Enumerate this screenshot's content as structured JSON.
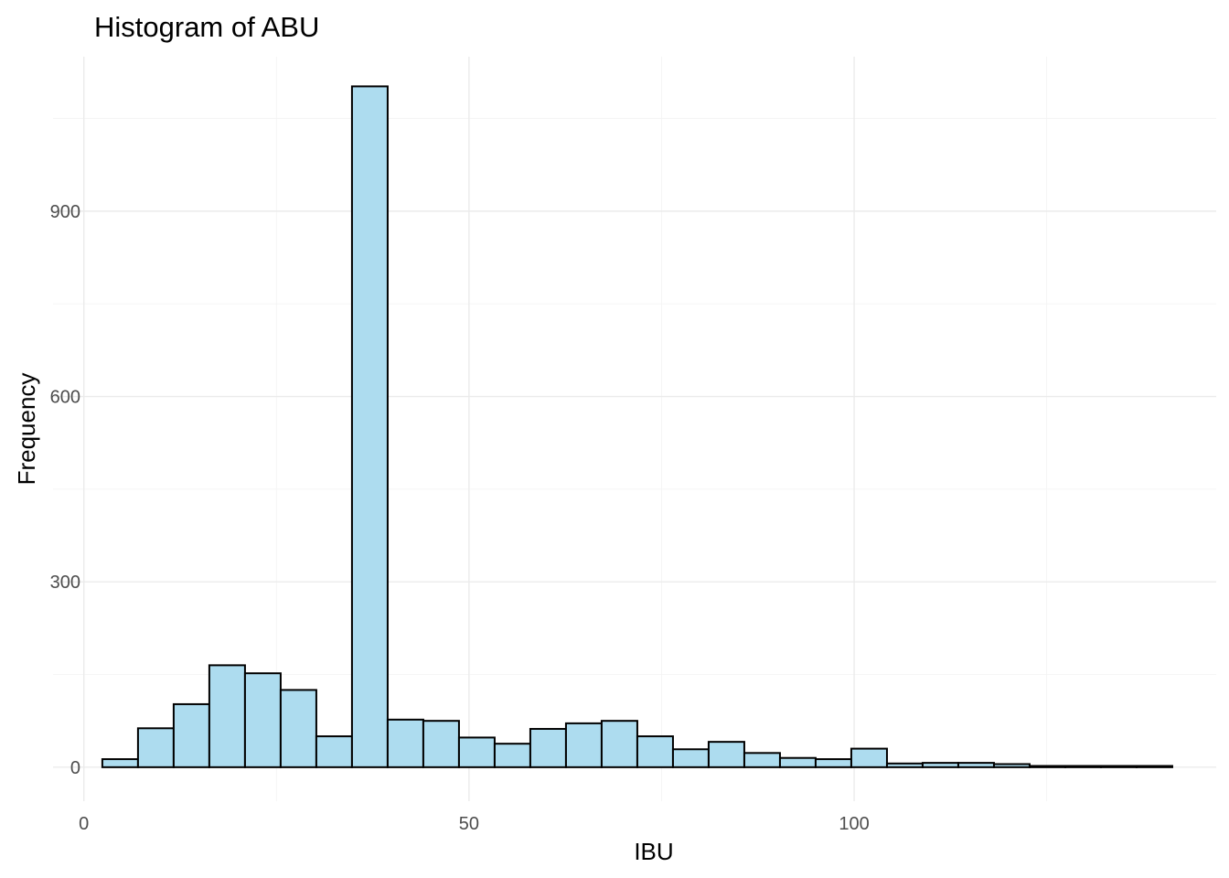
{
  "chart_data": {
    "type": "bar",
    "title": "Histogram of ABU",
    "xlabel": "IBU",
    "ylabel": "Frequency",
    "xlim": [
      -4,
      147
    ],
    "ylim": [
      -55,
      1150
    ],
    "x_ticks": [
      0,
      50,
      100
    ],
    "x_minor_ticks": [
      25,
      75,
      125
    ],
    "y_ticks": [
      0,
      300,
      600,
      900
    ],
    "y_minor_ticks": [
      150,
      450,
      750,
      1050
    ],
    "grid": true,
    "bin_width": 4.63,
    "bin_start": 2.4,
    "values": [
      13,
      63,
      102,
      165,
      152,
      125,
      50,
      1102,
      77,
      75,
      48,
      38,
      62,
      71,
      75,
      50,
      29,
      41,
      23,
      15,
      13,
      30,
      6,
      7,
      7,
      5,
      2,
      2,
      2,
      2
    ],
    "bar_fill": "#ADDCEF",
    "bar_stroke": "#000000"
  }
}
